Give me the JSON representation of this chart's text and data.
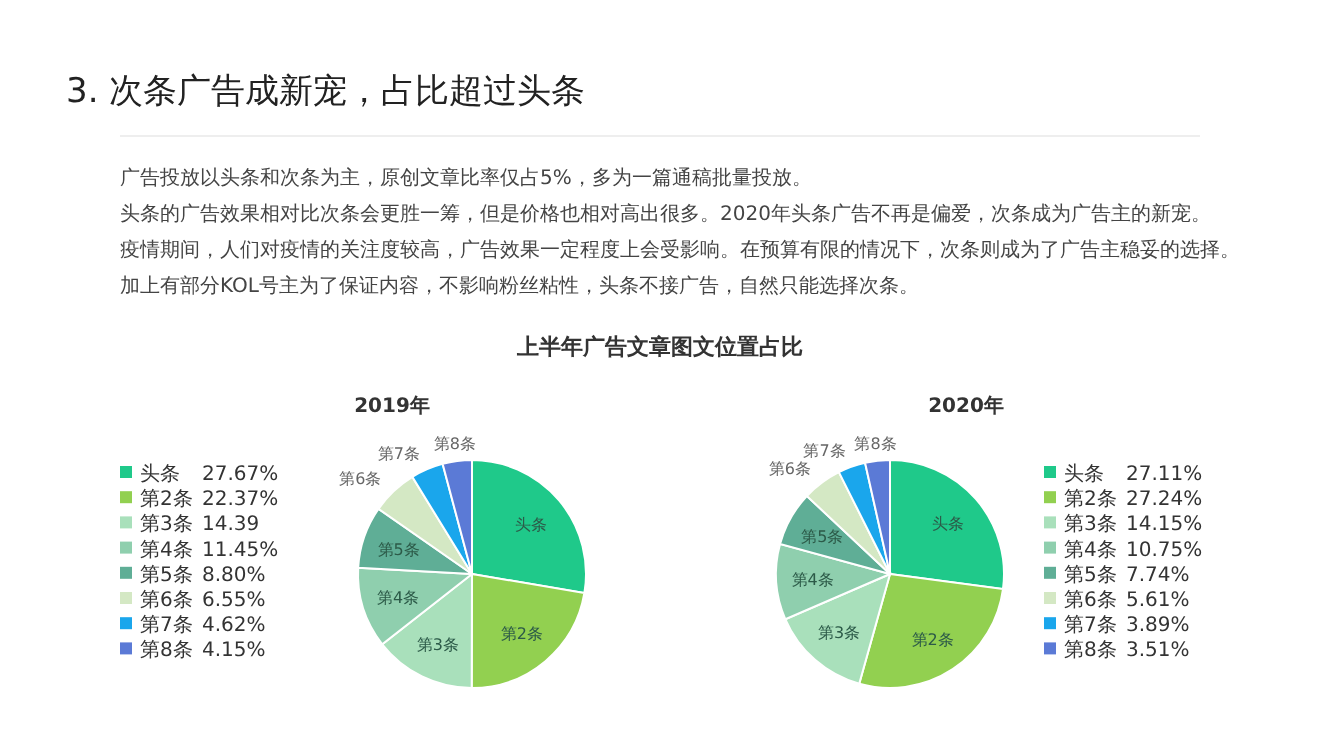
{
  "chart_data": [
    {
      "type": "pie",
      "title": "2019年",
      "legend": "left",
      "categories": [
        "头条",
        "第2条",
        "第3条",
        "第4条",
        "第5条",
        "第6条",
        "第7条",
        "第8条"
      ],
      "values": [
        27.67,
        22.37,
        14.39,
        11.45,
        8.8,
        6.55,
        4.62,
        4.15
      ],
      "value_labels": [
        "27.67%",
        "22.37%",
        "14.39",
        "11.45%",
        "8.80%",
        "6.55%",
        "4.62%",
        "4.15%"
      ],
      "colors": [
        "#1fc98a",
        "#92d050",
        "#a9e0bb",
        "#8fcfae",
        "#5fae96",
        "#d4e8c4",
        "#1aa6ec",
        "#5b7ad6"
      ],
      "annotations": [
        "3.  次条广告成新宠，占比超过头条",
        "广告投放以头条和次条为主，原创文章比率仅占5%，多为一篇通稿批量投放。",
        "头条的广告效果相对比次条会更胜一筹，但是价格也相对高出很多。2020年头条广告不再是偏爱，次条成为广告主的新宠。",
        "疫情期间，人们对疫情的关注度较高，广告效果一定程度上会受影响。在预算有限的情况下，次条则成为了广告主稳妥的选择。",
        "加上有部分KOL号主为了保证内容，不影响粉丝粘性，头条不接广告，自然只能选择次条。",
        "上半年广告文章图文位置占比"
      ]
    },
    {
      "type": "pie",
      "title": "2020年",
      "legend": "right",
      "categories": [
        "头条",
        "第2条",
        "第3条",
        "第4条",
        "第5条",
        "第6条",
        "第7条",
        "第8条"
      ],
      "values": [
        27.11,
        27.24,
        14.15,
        10.75,
        7.74,
        5.61,
        3.89,
        3.51
      ],
      "value_labels": [
        "27.11%",
        "27.24%",
        "14.15%",
        "10.75%",
        "7.74%",
        "5.61%",
        "3.89%",
        "3.51%"
      ],
      "colors": [
        "#1fc98a",
        "#92d050",
        "#a9e0bb",
        "#8fcfae",
        "#5fae96",
        "#d4e8c4",
        "#1aa6ec",
        "#5b7ad6"
      ]
    }
  ]
}
